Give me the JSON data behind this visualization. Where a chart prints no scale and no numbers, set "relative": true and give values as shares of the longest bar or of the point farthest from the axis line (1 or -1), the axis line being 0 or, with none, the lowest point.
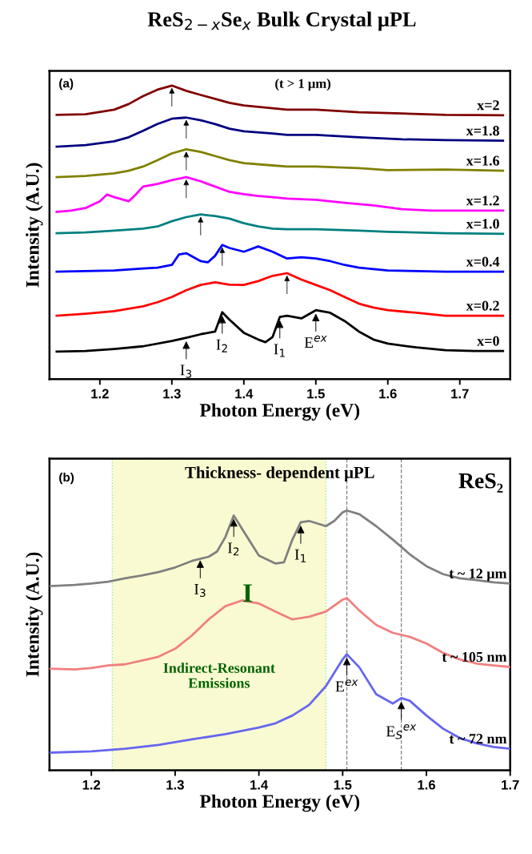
{
  "chart_data": [
    {
      "type": "line",
      "title": "ReS$_{2−x}$Se$_{x}$ Bulk Crystal μPL",
      "xlabel": "Photon Energy (eV)",
      "ylabel": "Intensity (A.U.)",
      "relative": true,
      "xlim": [
        1.13,
        1.77
      ],
      "xticks": [
        1.2,
        1.3,
        1.4,
        1.5,
        1.6,
        1.7
      ],
      "legend": false,
      "grid": false,
      "annotations": [
        "(a)",
        "(t > 1 μm)",
        {
          "text": "I$_{3}$",
          "x": 1.32,
          "y": 0.141
        },
        {
          "text": "I$_{2}$",
          "x": 1.37,
          "y": 0.228
        },
        {
          "text": "I$_{1}$",
          "x": 1.45,
          "y": 0.212
        },
        {
          "text": "E$^{ex}$",
          "x": 1.5,
          "y": 0.235
        }
      ],
      "series": [
        {
          "name": "x=0",
          "color": "#000000",
          "x": [
            1.14,
            1.18,
            1.22,
            1.26,
            1.3,
            1.32,
            1.34,
            1.36,
            1.37,
            1.38,
            1.4,
            1.42,
            1.43,
            1.44,
            1.45,
            1.46,
            1.48,
            1.5,
            1.52,
            1.54,
            1.56,
            1.58,
            1.6,
            1.64,
            1.68,
            1.72,
            1.76
          ],
          "values": [
            0.094,
            0.096,
            0.103,
            0.112,
            0.13,
            0.141,
            0.153,
            0.162,
            0.228,
            0.203,
            0.158,
            0.135,
            0.126,
            0.144,
            0.212,
            0.216,
            0.207,
            0.235,
            0.226,
            0.198,
            0.162,
            0.135,
            0.121,
            0.108,
            0.099,
            0.096,
            0.096
          ]
        },
        {
          "name": "x=0.2",
          "color": "#ff0000",
          "x": [
            1.14,
            1.18,
            1.22,
            1.26,
            1.28,
            1.3,
            1.32,
            1.34,
            1.36,
            1.38,
            1.4,
            1.42,
            1.44,
            1.46,
            1.48,
            1.5,
            1.52,
            1.54,
            1.56,
            1.58,
            1.6,
            1.64,
            1.68,
            1.72,
            1.76
          ],
          "values": [
            0.216,
            0.223,
            0.232,
            0.248,
            0.262,
            0.28,
            0.303,
            0.321,
            0.33,
            0.322,
            0.321,
            0.334,
            0.352,
            0.361,
            0.339,
            0.321,
            0.303,
            0.28,
            0.257,
            0.244,
            0.235,
            0.226,
            0.216,
            0.216,
            0.216
          ]
        },
        {
          "name": "x=0.4",
          "color": "#0000ff",
          "x": [
            1.14,
            1.18,
            1.22,
            1.26,
            1.28,
            1.3,
            1.31,
            1.32,
            1.34,
            1.35,
            1.36,
            1.37,
            1.38,
            1.4,
            1.42,
            1.44,
            1.46,
            1.48,
            1.5,
            1.52,
            1.54,
            1.56,
            1.6,
            1.64,
            1.68,
            1.72,
            1.76
          ],
          "values": [
            0.366,
            0.368,
            0.37,
            0.377,
            0.38,
            0.389,
            0.425,
            0.429,
            0.402,
            0.398,
            0.42,
            0.457,
            0.447,
            0.434,
            0.452,
            0.434,
            0.411,
            0.415,
            0.411,
            0.402,
            0.389,
            0.38,
            0.37,
            0.368,
            0.366,
            0.366,
            0.366
          ]
        },
        {
          "name": "x=1.0",
          "color": "#008080",
          "x": [
            1.14,
            1.18,
            1.22,
            1.26,
            1.28,
            1.3,
            1.32,
            1.34,
            1.36,
            1.38,
            1.4,
            1.42,
            1.44,
            1.46,
            1.5,
            1.56,
            1.6,
            1.68,
            1.76
          ],
          "values": [
            0.497,
            0.5,
            0.506,
            0.513,
            0.52,
            0.538,
            0.552,
            0.561,
            0.556,
            0.547,
            0.531,
            0.52,
            0.513,
            0.511,
            0.511,
            0.506,
            0.502,
            0.497,
            0.495
          ]
        },
        {
          "name": "x=1.2",
          "color": "#ff00ff",
          "x": [
            1.14,
            1.16,
            1.18,
            1.2,
            1.21,
            1.22,
            1.24,
            1.25,
            1.26,
            1.28,
            1.3,
            1.32,
            1.34,
            1.36,
            1.38,
            1.4,
            1.42,
            1.44,
            1.46,
            1.5,
            1.54,
            1.58,
            1.62,
            1.66,
            1.72,
            1.76
          ],
          "values": [
            0.57,
            0.574,
            0.583,
            0.606,
            0.629,
            0.62,
            0.606,
            0.629,
            0.656,
            0.665,
            0.678,
            0.688,
            0.674,
            0.656,
            0.638,
            0.63,
            0.624,
            0.62,
            0.615,
            0.611,
            0.601,
            0.592,
            0.579,
            0.574,
            0.574,
            0.574
          ]
        },
        {
          "name": "x=1.6",
          "color": "#808000",
          "x": [
            1.14,
            1.18,
            1.22,
            1.24,
            1.26,
            1.28,
            1.3,
            1.32,
            1.34,
            1.36,
            1.38,
            1.4,
            1.44,
            1.46,
            1.5,
            1.56,
            1.6,
            1.68,
            1.76
          ],
          "values": [
            0.688,
            0.692,
            0.701,
            0.71,
            0.724,
            0.746,
            0.769,
            0.783,
            0.774,
            0.76,
            0.746,
            0.736,
            0.728,
            0.724,
            0.724,
            0.719,
            0.712,
            0.714,
            0.71
          ]
        },
        {
          "name": "x=1.8",
          "color": "#000080",
          "x": [
            1.14,
            1.18,
            1.22,
            1.24,
            1.26,
            1.28,
            1.3,
            1.32,
            1.34,
            1.36,
            1.38,
            1.4,
            1.44,
            1.46,
            1.5,
            1.56,
            1.62,
            1.68,
            1.76
          ],
          "values": [
            0.792,
            0.797,
            0.81,
            0.824,
            0.846,
            0.869,
            0.887,
            0.891,
            0.882,
            0.869,
            0.853,
            0.844,
            0.837,
            0.832,
            0.832,
            0.824,
            0.817,
            0.814,
            0.812
          ]
        },
        {
          "name": "x=2",
          "color": "#800000",
          "x": [
            1.14,
            1.18,
            1.22,
            1.24,
            1.26,
            1.28,
            1.3,
            1.32,
            1.34,
            1.36,
            1.38,
            1.4,
            1.44,
            1.46,
            1.5,
            1.56,
            1.62,
            1.68,
            1.76
          ],
          "values": [
            0.9,
            0.902,
            0.918,
            0.937,
            0.964,
            0.986,
            1.0,
            0.982,
            0.968,
            0.955,
            0.941,
            0.932,
            0.923,
            0.918,
            0.918,
            0.909,
            0.905,
            0.9,
            0.899
          ]
        }
      ]
    },
    {
      "type": "line",
      "title": "Thickness- dependent μPL",
      "xlabel": "Photon Energy (eV)",
      "ylabel": "Intensity (A.U.)",
      "relative": true,
      "xlim": [
        1.15,
        1.7
      ],
      "xticks": [
        1.2,
        1.3,
        1.4,
        1.5,
        1.6,
        1.7
      ],
      "legend": false,
      "grid": false,
      "annotations": [
        "(b)",
        "ReS₂",
        "I",
        {
          "text": "I$_{3}$",
          "x": 1.33,
          "y": 0.822
        },
        {
          "text": "I$_{2}$",
          "x": 1.37,
          "y": 0.981
        },
        {
          "text": "I$_{1}$",
          "x": 1.45,
          "y": 0.955
        },
        {
          "text": "E$^{ex}$",
          "x": 1.505,
          "y": 0.447
        },
        {
          "text": "E$_{S}$$^{ex}$",
          "x": 1.57,
          "y": 0.278
        }
      ],
      "bands": [
        {
          "axis": "x",
          "from": 1.225,
          "to": 1.48,
          "label": "Indirect-Resonant\nEmissions",
          "color": "#fafad2"
        }
      ],
      "ref_lines": [
        {
          "axis": "x",
          "value": 1.505,
          "color": "#808080",
          "line_style": "dashed"
        },
        {
          "axis": "x",
          "value": 1.57,
          "color": "#808080",
          "line_style": "dashed"
        }
      ],
      "series": [
        {
          "name": "t ~ 12 μm",
          "color": "#808080",
          "x": [
            1.15,
            1.18,
            1.2,
            1.22,
            1.24,
            1.26,
            1.28,
            1.3,
            1.32,
            1.34,
            1.35,
            1.36,
            1.37,
            1.38,
            1.4,
            1.42,
            1.43,
            1.44,
            1.45,
            1.46,
            1.48,
            1.49,
            1.5,
            1.505,
            1.52,
            1.54,
            1.56,
            1.58,
            1.6,
            1.62,
            1.64,
            1.66,
            1.68,
            1.7
          ],
          "values": [
            0.709,
            0.714,
            0.719,
            0.726,
            0.739,
            0.75,
            0.763,
            0.781,
            0.806,
            0.822,
            0.842,
            0.898,
            0.981,
            0.929,
            0.827,
            0.796,
            0.801,
            0.888,
            0.955,
            0.96,
            0.94,
            0.96,
            0.993,
            1.0,
            0.986,
            0.94,
            0.888,
            0.832,
            0.786,
            0.755,
            0.739,
            0.732,
            0.724,
            0.719
          ]
        },
        {
          "name": "t ~ 105 nm",
          "color": "#f08080",
          "x": [
            1.15,
            1.18,
            1.2,
            1.22,
            1.24,
            1.26,
            1.28,
            1.3,
            1.32,
            1.34,
            1.36,
            1.38,
            1.4,
            1.42,
            1.44,
            1.46,
            1.48,
            1.5,
            1.505,
            1.52,
            1.54,
            1.56,
            1.58,
            1.6,
            1.62,
            1.64,
            1.66,
            1.68,
            1.7
          ],
          "values": [
            0.391,
            0.388,
            0.394,
            0.404,
            0.408,
            0.422,
            0.437,
            0.468,
            0.519,
            0.581,
            0.632,
            0.654,
            0.642,
            0.611,
            0.581,
            0.591,
            0.611,
            0.657,
            0.663,
            0.615,
            0.56,
            0.529,
            0.514,
            0.488,
            0.452,
            0.427,
            0.411,
            0.404,
            0.398
          ]
        },
        {
          "name": "t ~ 72 nm",
          "color": "#6666ee",
          "x": [
            1.15,
            1.2,
            1.24,
            1.28,
            1.32,
            1.36,
            1.4,
            1.42,
            1.44,
            1.46,
            1.48,
            1.5,
            1.505,
            1.52,
            1.54,
            1.56,
            1.57,
            1.58,
            1.6,
            1.62,
            1.64,
            1.66,
            1.68,
            1.7
          ],
          "values": [
            0.068,
            0.073,
            0.083,
            0.098,
            0.119,
            0.139,
            0.165,
            0.181,
            0.211,
            0.252,
            0.324,
            0.427,
            0.447,
            0.396,
            0.293,
            0.257,
            0.278,
            0.268,
            0.211,
            0.16,
            0.124,
            0.104,
            0.09,
            0.083
          ]
        }
      ]
    }
  ]
}
